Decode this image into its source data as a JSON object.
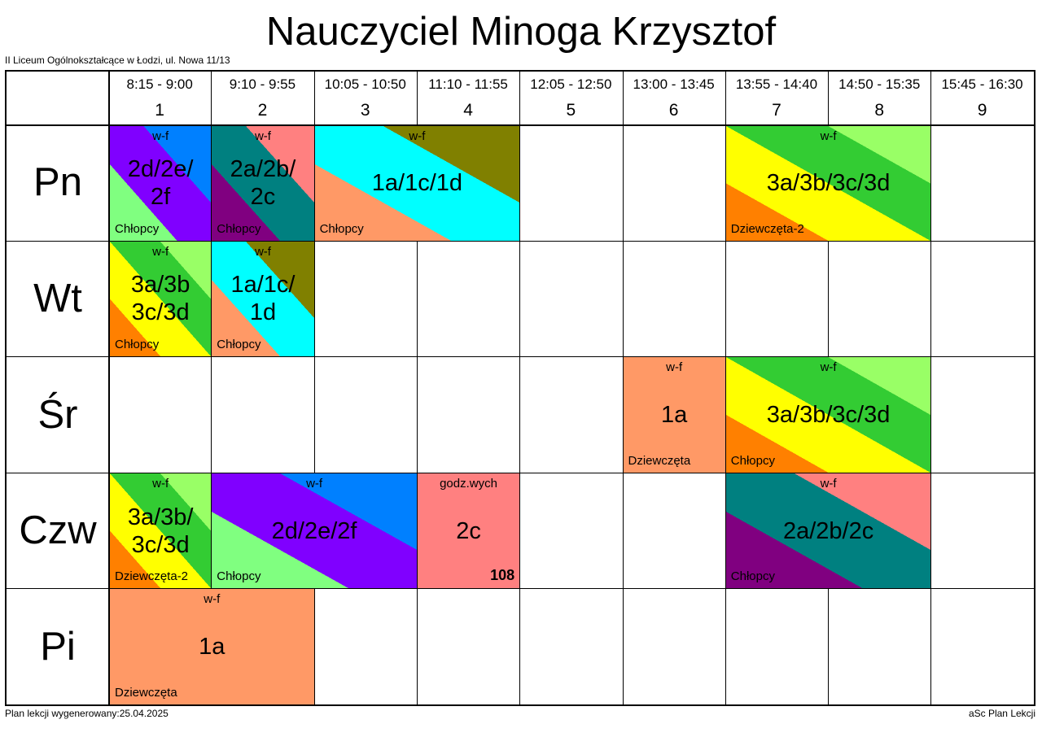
{
  "header": {
    "title": "Nauczyciel Minoga Krzysztof",
    "school": "II Liceum Ogólnokształcące w Łodzi, ul. Nowa 11/13"
  },
  "periods": [
    {
      "time": "8:15 - 9:00",
      "num": "1"
    },
    {
      "time": "9:10 - 9:55",
      "num": "2"
    },
    {
      "time": "10:05 - 10:50",
      "num": "3"
    },
    {
      "time": "11:10 - 11:55",
      "num": "4"
    },
    {
      "time": "12:05 - 12:50",
      "num": "5"
    },
    {
      "time": "13:00 - 13:45",
      "num": "6"
    },
    {
      "time": "13:55 - 14:40",
      "num": "7"
    },
    {
      "time": "14:50 - 15:35",
      "num": "8"
    },
    {
      "time": "15:45 - 16:30",
      "num": "9"
    }
  ],
  "days": [
    "Pn",
    "Wt",
    "Śr",
    "Czw",
    "Pi"
  ],
  "lessons": [
    {
      "day": 0,
      "start": 1,
      "span": 1,
      "subject": "w-f",
      "classes": "2d/2e/\n2f",
      "group": "Chłopcy",
      "room": "",
      "colors": [
        "#80ff80",
        "#8000ff",
        "#0080ff"
      ]
    },
    {
      "day": 0,
      "start": 2,
      "span": 1,
      "subject": "w-f",
      "classes": "2a/2b/\n2c",
      "group": "Chłopcy",
      "room": "",
      "colors": [
        "#800080",
        "#008080",
        "#ff8080"
      ]
    },
    {
      "day": 0,
      "start": 3,
      "span": 2,
      "subject": "w-f",
      "classes": "1a/1c/1d",
      "group": "Chłopcy",
      "room": "",
      "colors": [
        "#ff9966",
        "#00ffff",
        "#808000"
      ]
    },
    {
      "day": 0,
      "start": 7,
      "span": 2,
      "subject": "w-f",
      "classes": "3a/3b/3c/3d",
      "group": "Dziewczęta-2",
      "room": "",
      "colors": [
        "#ff8000",
        "#ffff00",
        "#33cc33",
        "#99ff66"
      ]
    },
    {
      "day": 1,
      "start": 1,
      "span": 1,
      "subject": "w-f",
      "classes": "3a/3b\n3c/3d",
      "group": "Chłopcy",
      "room": "",
      "colors": [
        "#ff8000",
        "#ffff00",
        "#33cc33",
        "#99ff66"
      ]
    },
    {
      "day": 1,
      "start": 2,
      "span": 1,
      "subject": "w-f",
      "classes": "1a/1c/\n1d",
      "group": "Chłopcy",
      "room": "",
      "colors": [
        "#ff9966",
        "#00ffff",
        "#808000"
      ]
    },
    {
      "day": 2,
      "start": 6,
      "span": 1,
      "subject": "w-f",
      "classes": "1a",
      "group": "Dziewczęta",
      "room": "",
      "colors": [
        "#ff9966"
      ]
    },
    {
      "day": 2,
      "start": 7,
      "span": 2,
      "subject": "w-f",
      "classes": "3a/3b/3c/3d",
      "group": "Chłopcy",
      "room": "",
      "colors": [
        "#ff8000",
        "#ffff00",
        "#33cc33",
        "#99ff66"
      ]
    },
    {
      "day": 3,
      "start": 1,
      "span": 1,
      "subject": "w-f",
      "classes": "3a/3b/\n3c/3d",
      "group": "Dziewczęta-2",
      "room": "",
      "colors": [
        "#ff8000",
        "#ffff00",
        "#33cc33",
        "#99ff66"
      ]
    },
    {
      "day": 3,
      "start": 2,
      "span": 2,
      "subject": "w-f",
      "classes": "2d/2e/2f",
      "group": "Chłopcy",
      "room": "",
      "colors": [
        "#80ff80",
        "#8000ff",
        "#0080ff"
      ]
    },
    {
      "day": 3,
      "start": 4,
      "span": 1,
      "subject": "godz.wych",
      "classes": "2c",
      "group": "",
      "room": "108",
      "colors": [
        "#ff8080"
      ]
    },
    {
      "day": 3,
      "start": 7,
      "span": 2,
      "subject": "w-f",
      "classes": "2a/2b/2c",
      "group": "Chłopcy",
      "room": "",
      "colors": [
        "#800080",
        "#008080",
        "#ff8080"
      ]
    },
    {
      "day": 4,
      "start": 1,
      "span": 2,
      "subject": "w-f",
      "classes": "1a",
      "group": "Dziewczęta",
      "room": "",
      "colors": [
        "#ff9966"
      ]
    }
  ],
  "footer": {
    "generated": "Plan lekcji wygenerowany:25.04.2025",
    "brand": "aSc Plan Lekcji"
  }
}
